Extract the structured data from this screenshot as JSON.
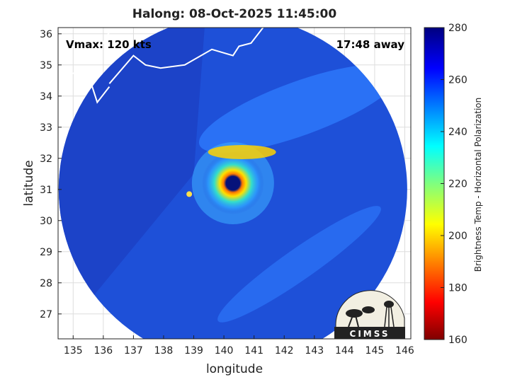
{
  "chart_data": {
    "type": "heatmap",
    "title": "Halong: 08-Oct-2025 11:45:00",
    "xlabel": "longitude",
    "ylabel": "latitude",
    "xlim": [
      134.5,
      146.2
    ],
    "ylim": [
      26.2,
      36.2
    ],
    "xticks": [
      135,
      136,
      137,
      138,
      139,
      140,
      141,
      142,
      143,
      144,
      145,
      146
    ],
    "yticks": [
      27,
      28,
      29,
      30,
      31,
      32,
      33,
      34,
      35,
      36
    ],
    "grid": true,
    "annotations": {
      "vmax": "Vmax: 120 kts",
      "away": "17:48 away"
    },
    "colorbar": {
      "label": "Brightness Temp - Horizontal Polarization",
      "range": [
        160,
        280
      ],
      "ticks": [
        160,
        180,
        200,
        220,
        240,
        260,
        280
      ],
      "colormap": "jet"
    },
    "storm_center": {
      "lon": 140.3,
      "lat": 31.2
    },
    "swath_center": {
      "lon": 140.3,
      "lat": 31.0
    },
    "logo_text": "CIMSS"
  },
  "colors": {
    "land_outline": "#ffffff",
    "background_swath": "#1e50d8",
    "eye": "#06127a"
  }
}
